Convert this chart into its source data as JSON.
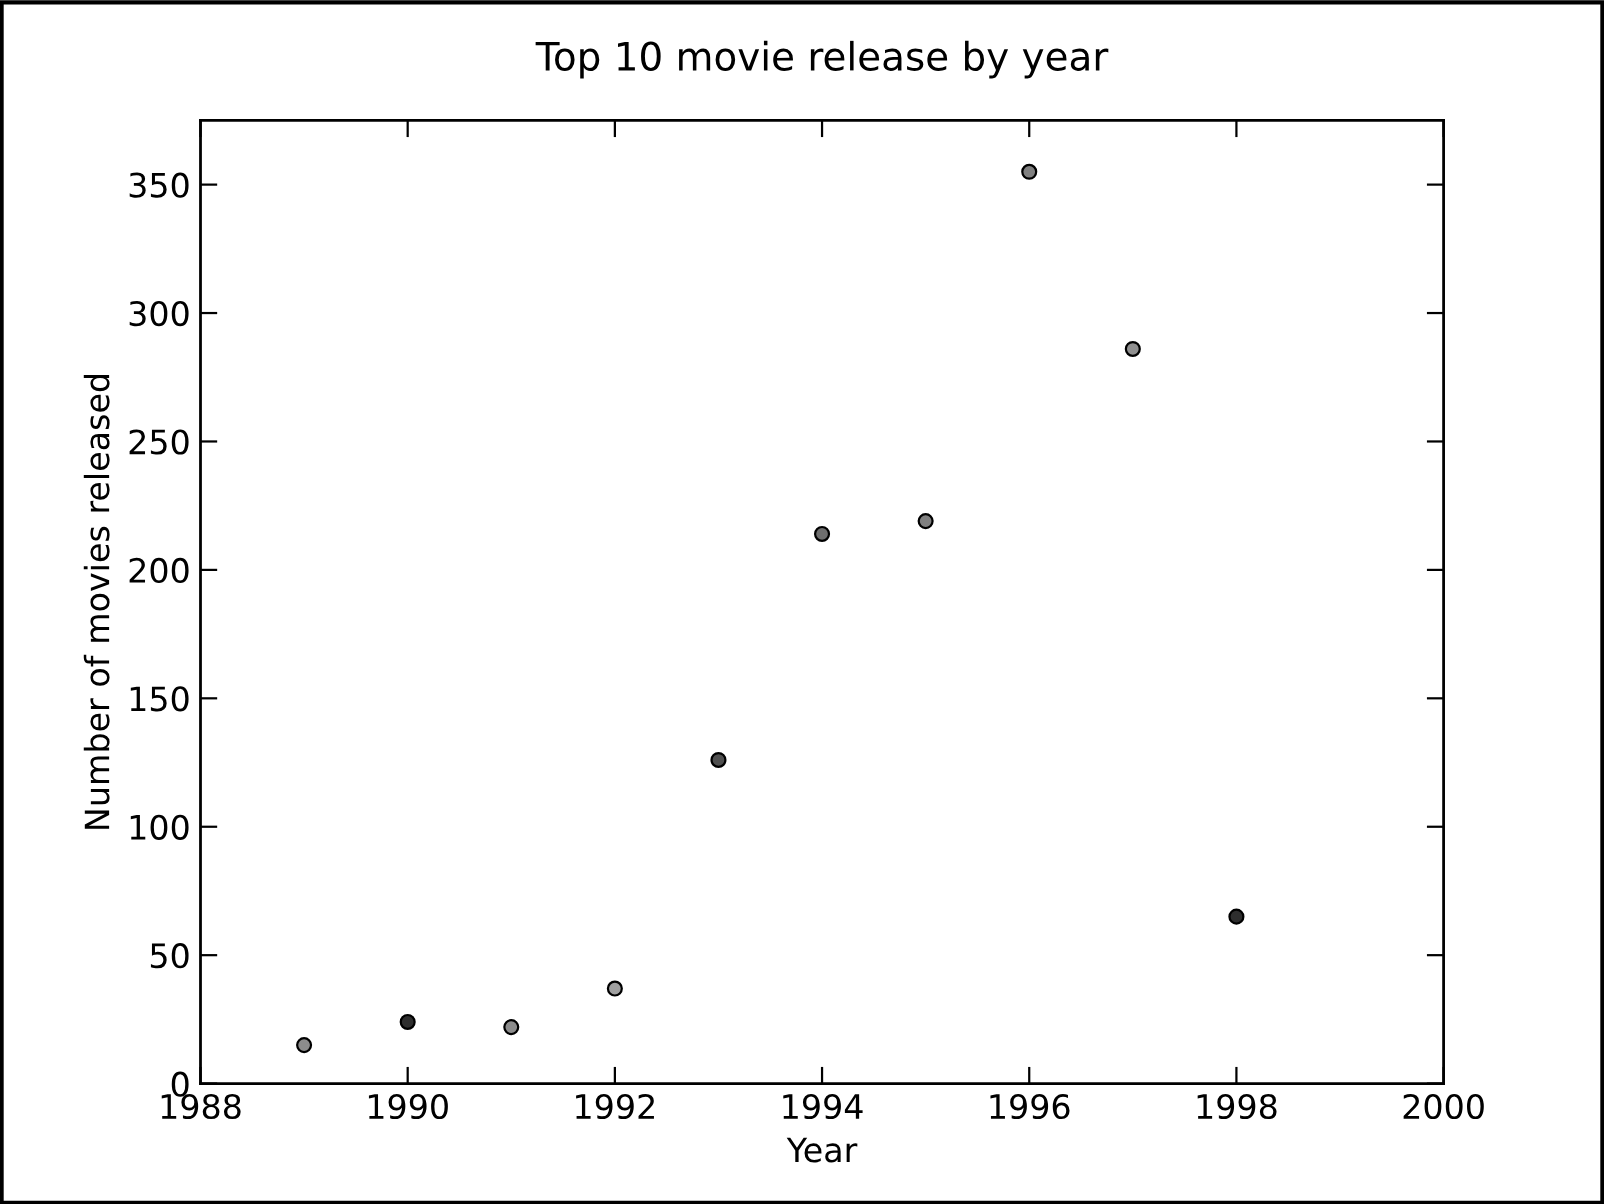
{
  "chart_data": {
    "type": "scatter",
    "title": "Top 10 movie release by year",
    "xlabel": "Year",
    "ylabel": "Number of movies released",
    "x": [
      1989,
      1990,
      1991,
      1992,
      1993,
      1994,
      1995,
      1996,
      1997,
      1998
    ],
    "values": [
      15,
      24,
      22,
      37,
      126,
      214,
      219,
      355,
      286,
      65
    ],
    "colors": [
      "#8c8c8c",
      "#2e2e2e",
      "#8c8c8c",
      "#a0a0a0",
      "#505050",
      "#6e6e6e",
      "#808080",
      "#808080",
      "#909090",
      "#2e2e2e"
    ],
    "xlim": [
      1988,
      2000
    ],
    "xticks": [
      1988,
      1990,
      1992,
      1994,
      1996,
      1998,
      2000
    ],
    "ylim": [
      0,
      375
    ],
    "yticks": [
      0,
      50,
      100,
      150,
      200,
      250,
      300,
      350
    ],
    "marker": "circle",
    "grid": false
  }
}
